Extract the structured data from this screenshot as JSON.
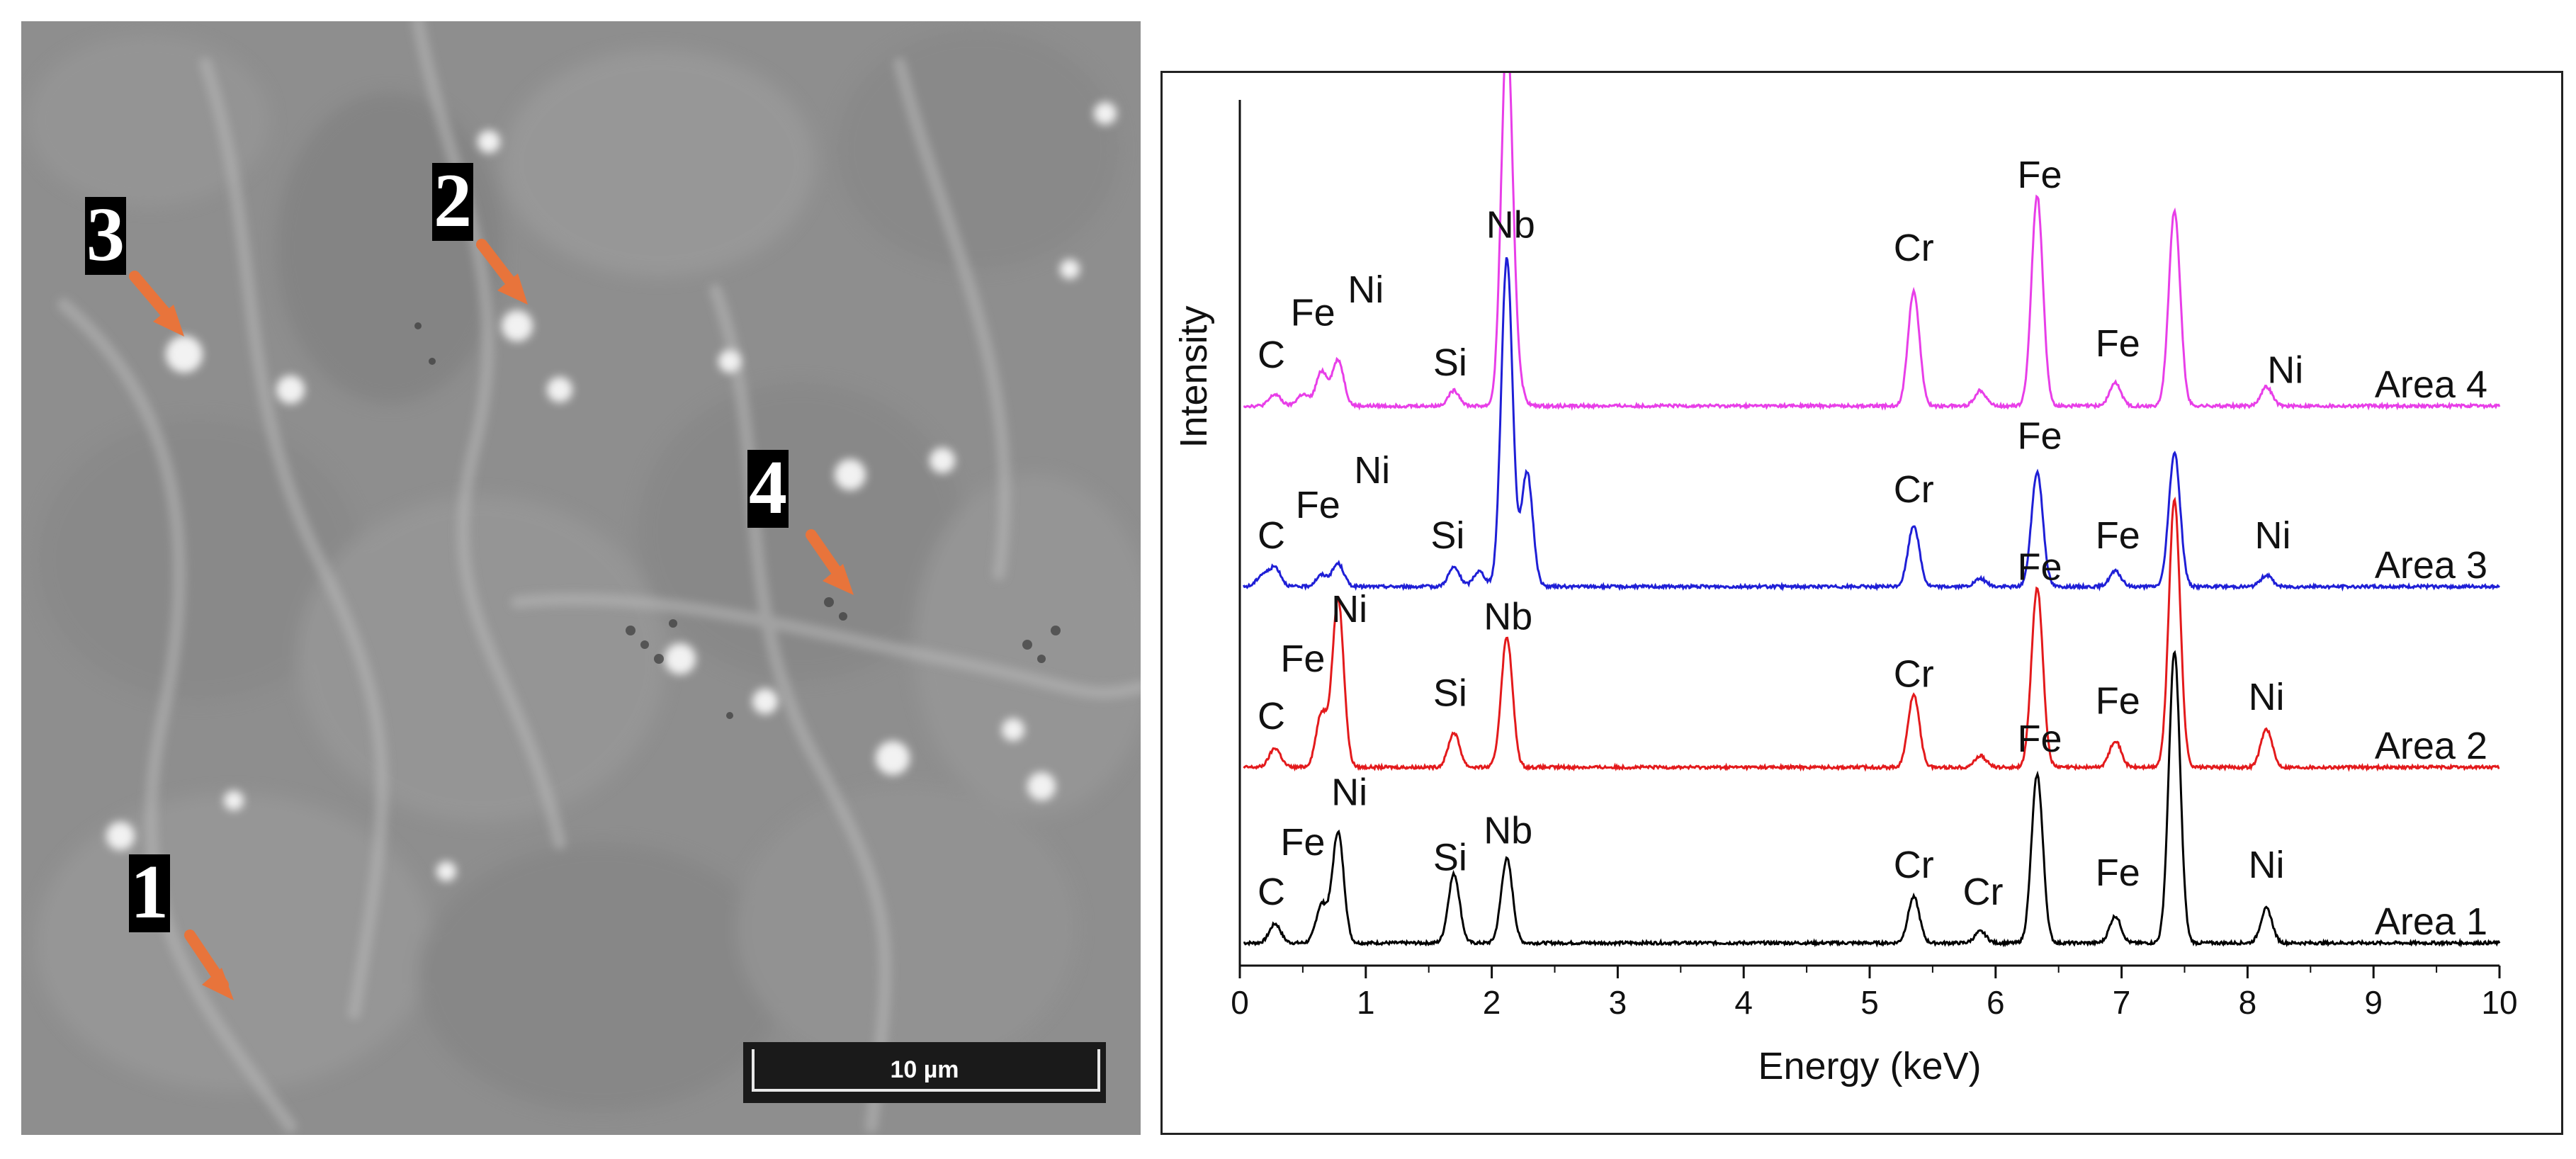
{
  "micrograph": {
    "markers": [
      "1",
      "2",
      "3",
      "4"
    ],
    "scale_bar_label": "10 µm",
    "arrow_color": "#e8743b"
  },
  "chart_data": {
    "type": "line",
    "xlabel": "Energy (keV)",
    "ylabel": "Intensity",
    "xlim": [
      0,
      10
    ],
    "xticks": [
      "0",
      "1",
      "2",
      "3",
      "4",
      "5",
      "6",
      "7",
      "8",
      "9",
      "10"
    ],
    "grid": false,
    "series": [
      {
        "name": "Area 1",
        "color": "#000000",
        "peaks": [
          {
            "e": 0.28,
            "h": 0.05
          },
          {
            "e": 0.65,
            "h": 0.1
          },
          {
            "e": 0.78,
            "h": 0.29
          },
          {
            "e": 1.7,
            "h": 0.18
          },
          {
            "e": 2.12,
            "h": 0.22
          },
          {
            "e": 5.35,
            "h": 0.12
          },
          {
            "e": 5.88,
            "h": 0.03
          },
          {
            "e": 6.33,
            "h": 0.44
          },
          {
            "e": 6.95,
            "h": 0.07
          },
          {
            "e": 7.42,
            "h": 0.76
          },
          {
            "e": 8.15,
            "h": 0.09
          }
        ],
        "labels": [
          {
            "text": "C",
            "e": 0.25,
            "h": 0.1
          },
          {
            "text": "Fe",
            "e": 0.5,
            "h": 0.23
          },
          {
            "text": "Ni",
            "e": 0.87,
            "h": 0.36
          },
          {
            "text": "Si",
            "e": 1.67,
            "h": 0.19
          },
          {
            "text": "Nb",
            "e": 2.13,
            "h": 0.26
          },
          {
            "text": "Cr",
            "e": 5.35,
            "h": 0.17
          },
          {
            "text": "Cr",
            "e": 5.9,
            "h": 0.1
          },
          {
            "text": "Fe",
            "e": 6.35,
            "h": 0.5
          },
          {
            "text": "Fe",
            "e": 6.97,
            "h": 0.15
          },
          {
            "text": "Ni",
            "e": 8.15,
            "h": 0.17
          }
        ]
      },
      {
        "name": "Area 2",
        "color": "#e31a1c",
        "peaks": [
          {
            "e": 0.28,
            "h": 0.05
          },
          {
            "e": 0.65,
            "h": 0.14
          },
          {
            "e": 0.78,
            "h": 0.44
          },
          {
            "e": 1.7,
            "h": 0.09
          },
          {
            "e": 2.12,
            "h": 0.34
          },
          {
            "e": 5.35,
            "h": 0.19
          },
          {
            "e": 5.88,
            "h": 0.03
          },
          {
            "e": 6.33,
            "h": 0.47
          },
          {
            "e": 6.95,
            "h": 0.07
          },
          {
            "e": 7.42,
            "h": 0.7
          },
          {
            "e": 8.15,
            "h": 0.1
          }
        ],
        "labels": [
          {
            "text": "C",
            "e": 0.25,
            "h": 0.1
          },
          {
            "text": "Fe",
            "e": 0.5,
            "h": 0.25
          },
          {
            "text": "Ni",
            "e": 0.87,
            "h": 0.38
          },
          {
            "text": "Si",
            "e": 1.67,
            "h": 0.16
          },
          {
            "text": "Nb",
            "e": 2.13,
            "h": 0.36
          },
          {
            "text": "Cr",
            "e": 5.35,
            "h": 0.21
          },
          {
            "text": "Fe",
            "e": 6.35,
            "h": 0.49
          },
          {
            "text": "Fe",
            "e": 6.97,
            "h": 0.14
          },
          {
            "text": "Ni",
            "e": 8.15,
            "h": 0.15
          }
        ]
      },
      {
        "name": "Area 3",
        "color": "#1f1fd6",
        "peaks": [
          {
            "e": 0.18,
            "h": 0.03
          },
          {
            "e": 0.28,
            "h": 0.05
          },
          {
            "e": 0.65,
            "h": 0.03
          },
          {
            "e": 0.78,
            "h": 0.06
          },
          {
            "e": 1.7,
            "h": 0.05
          },
          {
            "e": 1.9,
            "h": 0.04
          },
          {
            "e": 2.12,
            "h": 0.86
          },
          {
            "e": 2.28,
            "h": 0.3
          },
          {
            "e": 5.35,
            "h": 0.16
          },
          {
            "e": 5.88,
            "h": 0.02
          },
          {
            "e": 6.33,
            "h": 0.3
          },
          {
            "e": 6.95,
            "h": 0.04
          },
          {
            "e": 7.42,
            "h": 0.35
          },
          {
            "e": 8.15,
            "h": 0.03
          }
        ],
        "labels": [
          {
            "text": "C",
            "e": 0.25,
            "h": 0.1
          },
          {
            "text": "Fe",
            "e": 0.62,
            "h": 0.18
          },
          {
            "text": "Ni",
            "e": 1.05,
            "h": 0.27
          },
          {
            "text": "Si",
            "e": 1.65,
            "h": 0.1
          },
          {
            "text": "Cr",
            "e": 5.35,
            "h": 0.22
          },
          {
            "text": "Fe",
            "e": 6.35,
            "h": 0.36
          },
          {
            "text": "Fe",
            "e": 6.97,
            "h": 0.1
          },
          {
            "text": "Ni",
            "e": 8.2,
            "h": 0.1
          }
        ]
      },
      {
        "name": "Area 4",
        "color": "#e83ee8",
        "peaks": [
          {
            "e": 0.28,
            "h": 0.03
          },
          {
            "e": 0.5,
            "h": 0.03
          },
          {
            "e": 0.65,
            "h": 0.09
          },
          {
            "e": 0.78,
            "h": 0.12
          },
          {
            "e": 1.7,
            "h": 0.04
          },
          {
            "e": 2.12,
            "h": 0.97
          },
          {
            "e": 2.2,
            "h": 0.06
          },
          {
            "e": 5.35,
            "h": 0.3
          },
          {
            "e": 5.88,
            "h": 0.04
          },
          {
            "e": 6.33,
            "h": 0.55
          },
          {
            "e": 6.95,
            "h": 0.06
          },
          {
            "e": 7.42,
            "h": 0.51
          },
          {
            "e": 8.15,
            "h": 0.05
          }
        ],
        "labels": [
          {
            "text": "C",
            "e": 0.25,
            "h": 0.1
          },
          {
            "text": "Fe",
            "e": 0.58,
            "h": 0.21
          },
          {
            "text": "Ni",
            "e": 1.0,
            "h": 0.27
          },
          {
            "text": "Si",
            "e": 1.67,
            "h": 0.08
          },
          {
            "text": "Nb",
            "e": 2.15,
            "h": 0.44
          },
          {
            "text": "Cr",
            "e": 5.35,
            "h": 0.38
          },
          {
            "text": "Fe",
            "e": 6.35,
            "h": 0.57
          },
          {
            "text": "Fe",
            "e": 6.97,
            "h": 0.13
          },
          {
            "text": "Ni",
            "e": 8.3,
            "h": 0.06
          }
        ]
      }
    ]
  }
}
